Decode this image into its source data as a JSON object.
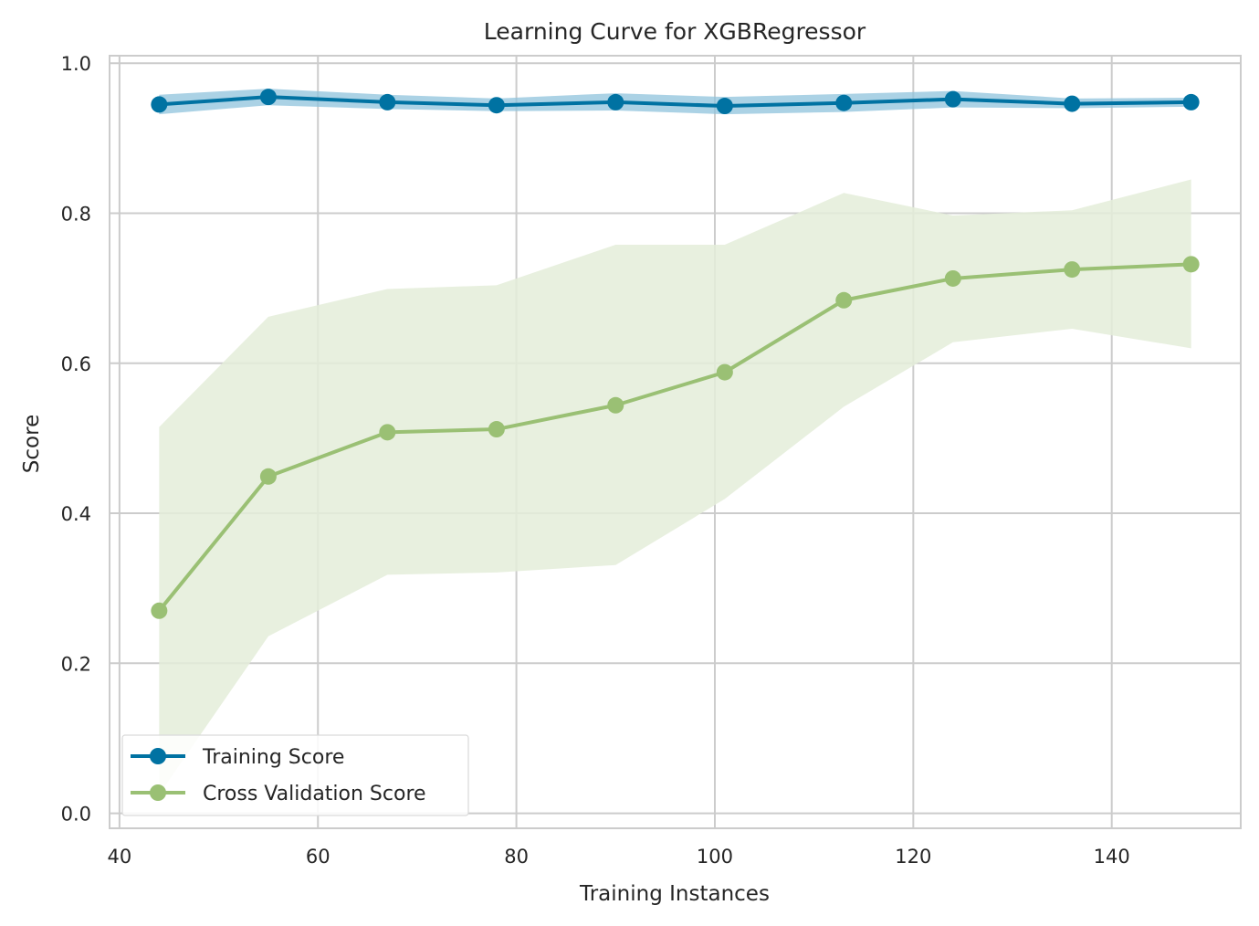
{
  "chart_data": {
    "type": "line",
    "title": "Learning Curve for XGBRegressor",
    "xlabel": "Training Instances",
    "ylabel": "Score",
    "xlim": [
      39,
      153
    ],
    "ylim": [
      -0.02,
      1.01
    ],
    "xticks": [
      40,
      60,
      80,
      100,
      120,
      140
    ],
    "yticks": [
      0.0,
      0.2,
      0.4,
      0.6,
      0.8,
      1.0
    ],
    "xtick_labels": [
      "40",
      "60",
      "80",
      "100",
      "120",
      "140"
    ],
    "ytick_labels": [
      "0.0",
      "0.2",
      "0.4",
      "0.6",
      "0.8",
      "1.0"
    ],
    "grid": true,
    "legend_position": "lower-left",
    "x": [
      44,
      55,
      67,
      78,
      90,
      101,
      113,
      124,
      136,
      148
    ],
    "series": [
      {
        "name": "Training Score",
        "color": "#0072a2",
        "band_color": "#8fc3dc",
        "values": [
          0.945,
          0.955,
          0.948,
          0.944,
          0.948,
          0.943,
          0.947,
          0.952,
          0.946,
          0.948
        ],
        "lower": [
          0.932,
          0.944,
          0.939,
          0.936,
          0.937,
          0.932,
          0.935,
          0.941,
          0.94,
          0.942
        ],
        "upper": [
          0.958,
          0.966,
          0.958,
          0.953,
          0.96,
          0.955,
          0.959,
          0.963,
          0.953,
          0.954
        ]
      },
      {
        "name": "Cross Validation Score",
        "color": "#9ac074",
        "band_color": "#e4edd9",
        "values": [
          0.27,
          0.449,
          0.508,
          0.512,
          0.544,
          0.588,
          0.684,
          0.713,
          0.725,
          0.732
        ],
        "lower": [
          0.025,
          0.236,
          0.318,
          0.321,
          0.331,
          0.419,
          0.542,
          0.628,
          0.646,
          0.62
        ],
        "upper": [
          0.515,
          0.662,
          0.699,
          0.704,
          0.758,
          0.758,
          0.827,
          0.797,
          0.804,
          0.845
        ]
      }
    ]
  }
}
